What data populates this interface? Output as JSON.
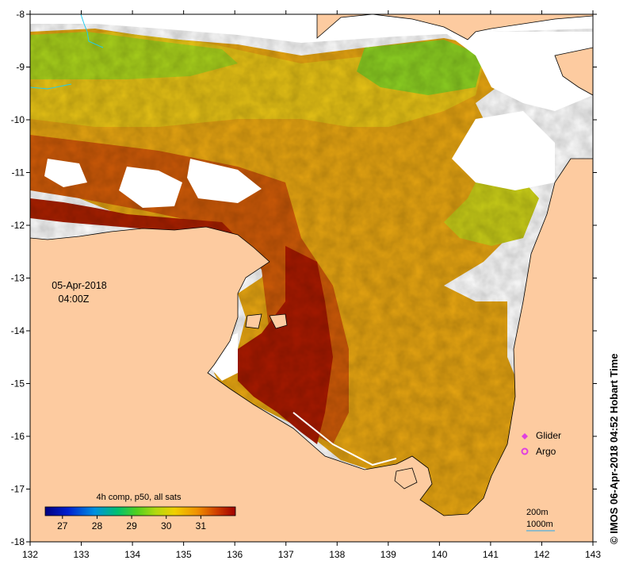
{
  "map": {
    "lon_range": [
      132,
      143
    ],
    "lat_range": [
      -18,
      -8
    ],
    "lon_ticks": [
      "132",
      "133",
      "134",
      "135",
      "136",
      "137",
      "138",
      "139",
      "140",
      "141",
      "142",
      "143"
    ],
    "lat_ticks": [
      "-8",
      "-9",
      "-10",
      "-11",
      "-12",
      "-13",
      "-14",
      "-15",
      "-16",
      "-17",
      "-18"
    ]
  },
  "datetime": {
    "date": "05-Apr-2018",
    "time": "04:00Z"
  },
  "colorbar": {
    "title": "4h comp, p50, all sats",
    "min": 26.5,
    "max": 32,
    "ticks": [
      "27",
      "28",
      "29",
      "30",
      "31"
    ]
  },
  "legend": {
    "glider": "Glider",
    "argo": "Argo",
    "glider_color": "#e040e0",
    "argo_color": "#e040e0"
  },
  "scale": {
    "contour_200": "200m",
    "contour_1000": "1000m"
  },
  "credit": "© IMOS 06-Apr-2018 04:52 Hobart Time",
  "colors": {
    "land": "#fdcba0",
    "sea_hot": "#a30d00",
    "sea_orange": "#e08410",
    "sea_yellow": "#e8c80e",
    "sea_green": "#9ad41a"
  }
}
